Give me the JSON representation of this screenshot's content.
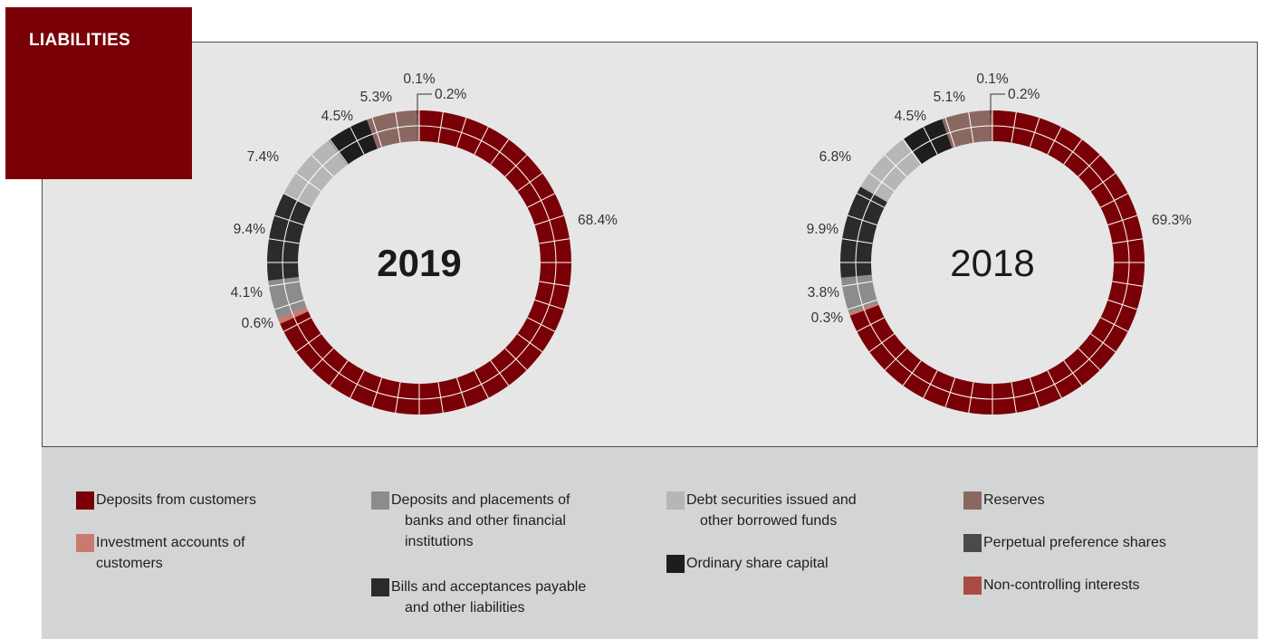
{
  "title": "LIABILITIES",
  "colors": {
    "deposits_customers": "#7a0007",
    "investment_accounts": "#c87a6e",
    "deposits_banks": "#8c8c8c",
    "bills_acceptances": "#2b2a2c",
    "debt_securities": "#b5b6b8",
    "ordinary_share_capital": "#1e1c1d",
    "reserves": "#8a6862",
    "perpetual_preference": "#4a4a4c",
    "non_controlling": "#a94d44"
  },
  "legend": [
    {
      "key": "deposits_customers",
      "lines": [
        "Deposits from customers"
      ]
    },
    {
      "key": "investment_accounts",
      "lines": [
        "Investment accounts of",
        "customers"
      ]
    },
    {
      "key": "deposits_banks",
      "lines": [
        "Deposits and placements of",
        "banks and other financial",
        "institutions"
      ]
    },
    {
      "key": "bills_acceptances",
      "lines": [
        "Bills and acceptances payable",
        "and other liabilities"
      ]
    },
    {
      "key": "debt_securities",
      "lines": [
        "Debt securities issued and",
        "other borrowed funds"
      ]
    },
    {
      "key": "ordinary_share_capital",
      "lines": [
        "Ordinary share capital"
      ]
    },
    {
      "key": "reserves",
      "lines": [
        "Reserves"
      ]
    },
    {
      "key": "perpetual_preference",
      "lines": [
        "Perpetual preference shares"
      ]
    },
    {
      "key": "non_controlling",
      "lines": [
        "Non-controlling interests"
      ]
    }
  ],
  "chart_data": [
    {
      "type": "pie",
      "year_label": "2019",
      "segments": [
        {
          "key": "deposits_customers",
          "value": 68.4,
          "label": "68.4%"
        },
        {
          "key": "investment_accounts",
          "value": 0.6,
          "label": "0.6%"
        },
        {
          "key": "deposits_banks",
          "value": 4.1,
          "label": "4.1%"
        },
        {
          "key": "bills_acceptances",
          "value": 9.4,
          "label": "9.4%"
        },
        {
          "key": "debt_securities",
          "value": 7.4,
          "label": "7.4%"
        },
        {
          "key": "ordinary_share_capital",
          "value": 4.5,
          "label": "4.5%"
        },
        {
          "key": "reserves",
          "value": 5.3,
          "label": "5.3%"
        },
        {
          "key": "perpetual_preference",
          "value": 0.1,
          "label": "0.1%"
        },
        {
          "key": "non_controlling",
          "value": 0.2,
          "label": "0.2%"
        }
      ]
    },
    {
      "type": "pie",
      "year_label": "2018",
      "segments": [
        {
          "key": "deposits_customers",
          "value": 69.3,
          "label": "69.3%"
        },
        {
          "key": "investment_accounts",
          "value": 0.3,
          "label": "0.3%"
        },
        {
          "key": "deposits_banks",
          "value": 3.8,
          "label": "3.8%"
        },
        {
          "key": "bills_acceptances",
          "value": 9.9,
          "label": "9.9%"
        },
        {
          "key": "debt_securities",
          "value": 6.8,
          "label": "6.8%"
        },
        {
          "key": "ordinary_share_capital",
          "value": 4.5,
          "label": "4.5%"
        },
        {
          "key": "reserves",
          "value": 5.1,
          "label": "5.1%"
        },
        {
          "key": "perpetual_preference",
          "value": 0.1,
          "label": "0.1%"
        },
        {
          "key": "non_controlling",
          "value": 0.2,
          "label": "0.2%"
        }
      ]
    }
  ]
}
